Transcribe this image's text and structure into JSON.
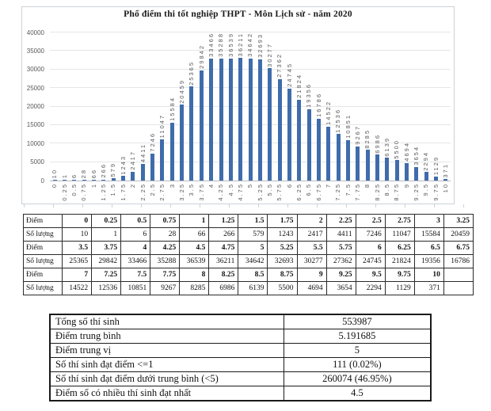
{
  "chart_data": {
    "type": "bar",
    "title": "Phổ điểm thi tốt nghiệp THPT - Môn Lịch sử - năm 2020",
    "categories": [
      "0",
      "0.25",
      "0.5",
      "0.75",
      "1",
      "1.25",
      "1.5",
      "1.75",
      "2",
      "2.25",
      "2.5",
      "2.75",
      "3",
      "3.25",
      "3.5",
      "3.75",
      "4",
      "4.25",
      "4.5",
      "4.75",
      "5",
      "5.25",
      "5.5",
      "5.75",
      "6",
      "6.25",
      "6.5",
      "6.75",
      "7",
      "7.25",
      "7.5",
      "7.75",
      "8",
      "8.25",
      "8.5",
      "8.75",
      "9",
      "9.25",
      "9.5",
      "9.75",
      "10"
    ],
    "values": [
      10,
      1,
      6,
      28,
      66,
      266,
      579,
      1243,
      2417,
      4411,
      7246,
      11047,
      15584,
      20459,
      25365,
      29842,
      33466,
      35288,
      36539,
      36211,
      34642,
      32693,
      30277,
      27362,
      24745,
      21824,
      19356,
      16786,
      14522,
      12536,
      10851,
      9267,
      8285,
      6986,
      6139,
      5500,
      4694,
      3654,
      2294,
      1129,
      371
    ],
    "y_ticks": [
      "0",
      "5000",
      "10000",
      "15000",
      "20000",
      "25000",
      "30000",
      "35000",
      "40000"
    ],
    "ylim": [
      0,
      40000
    ],
    "xlabel": "",
    "ylabel": "",
    "grid": true,
    "legend": "none",
    "data_labels": "rotated-vertical",
    "bar_color": "#3F6CAB",
    "gridline_color": "#e3e6ea"
  },
  "score_table": {
    "rows": [
      {
        "label": "Điểm",
        "bold": true,
        "cells": [
          "0",
          "0.25",
          "0.5",
          "0.75",
          "1",
          "1.25",
          "1.5",
          "1.75",
          "2",
          "2.25",
          "2.5",
          "2.75",
          "3",
          "3.25"
        ]
      },
      {
        "label": "Số lượng",
        "bold": false,
        "cells": [
          "10",
          "1",
          "6",
          "28",
          "66",
          "266",
          "579",
          "1243",
          "2417",
          "4411",
          "7246",
          "11047",
          "15584",
          "20459"
        ]
      },
      {
        "label": "Điểm",
        "bold": true,
        "cells": [
          "3.5",
          "3.75",
          "4",
          "4.25",
          "4.5",
          "4.75",
          "5",
          "5.25",
          "5.5",
          "5.75",
          "6",
          "6.25",
          "6.5",
          "6.75"
        ]
      },
      {
        "label": "Số lượng",
        "bold": false,
        "cells": [
          "25365",
          "29842",
          "33466",
          "35288",
          "36539",
          "36211",
          "34642",
          "32693",
          "30277",
          "27362",
          "24745",
          "21824",
          "19356",
          "16786"
        ]
      },
      {
        "label": "Điểm",
        "bold": true,
        "cells": [
          "7",
          "7.25",
          "7.5",
          "7.75",
          "8",
          "8.25",
          "8.5",
          "8.75",
          "9",
          "9.25",
          "9.5",
          "9.75",
          "10",
          ""
        ]
      },
      {
        "label": "Số lượng",
        "bold": false,
        "cells": [
          "14522",
          "12536",
          "10851",
          "9267",
          "8285",
          "6986",
          "6139",
          "5500",
          "4694",
          "3654",
          "2294",
          "1129",
          "371",
          ""
        ]
      }
    ]
  },
  "summary_table": {
    "rows": [
      {
        "label": "Tổng số thí sinh",
        "value": "553987"
      },
      {
        "label": "Điểm trung bình",
        "value": "5.191685"
      },
      {
        "label": "Điểm trung vị",
        "value": "5"
      },
      {
        "label": "Số thí sinh đạt điểm <=1",
        "value": "111 (0.02%)"
      },
      {
        "label": "Số thí sinh đạt điểm dưới trung bình (<5)",
        "value": "260074 (46.95%)"
      },
      {
        "label": "Điểm số có nhiều thí sinh đạt nhất",
        "value": "4.5"
      }
    ]
  }
}
